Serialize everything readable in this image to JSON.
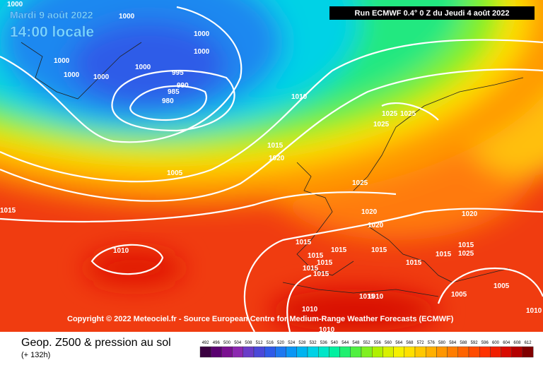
{
  "header": {
    "date": "Mardi 9 août 2022",
    "time": "14:00 locale",
    "run": "Run ECMWF 0.4° 0 Z du Jeudi 4 août 2022"
  },
  "isobar_labels": [
    "1000",
    "1000",
    "1000",
    "1000",
    "1000",
    "1000",
    "1000",
    "1000",
    "995",
    "990",
    "985",
    "980",
    "1010",
    "1025",
    "1025",
    "1025",
    "1015",
    "1020",
    "1005",
    "1015",
    "1025",
    "1020",
    "1020",
    "1020",
    "1015",
    "1015",
    "1015",
    "1015",
    "1015",
    "1015",
    "1015",
    "1015",
    "1015",
    "1015",
    "1025",
    "1010",
    "1015",
    "1010",
    "1010",
    "1010",
    "1005",
    "1005",
    "1010"
  ],
  "copyright": "Copyright © 2022 Meteociel.fr - Source European Centre for Medium-Range Weather Forecasts (ECMWF)",
  "footer": {
    "title": "Geop. Z500 & pression au sol",
    "lead": "(+ 132h)"
  },
  "scale": {
    "labels": [
      "492",
      "496",
      "500",
      "504",
      "508",
      "512",
      "516",
      "520",
      "524",
      "528",
      "532",
      "536",
      "540",
      "544",
      "548",
      "552",
      "556",
      "560",
      "564",
      "568",
      "572",
      "576",
      "580",
      "584",
      "588",
      "592",
      "596",
      "600",
      "604",
      "608",
      "612"
    ],
    "colors": [
      "#3a0040",
      "#5a0070",
      "#7a1090",
      "#8c28b0",
      "#6a3cc8",
      "#4b48d8",
      "#2f5be8",
      "#1e78f0",
      "#0a96f5",
      "#00b4f0",
      "#00d2e6",
      "#00e6c8",
      "#00f0a0",
      "#20f070",
      "#50f040",
      "#80f020",
      "#b0f000",
      "#d8f000",
      "#f5f000",
      "#ffe000",
      "#ffc800",
      "#ffb000",
      "#ff9600",
      "#ff7d00",
      "#ff6400",
      "#ff4b00",
      "#ff3200",
      "#f01e00",
      "#d80a00",
      "#b40000",
      "#800000"
    ]
  }
}
